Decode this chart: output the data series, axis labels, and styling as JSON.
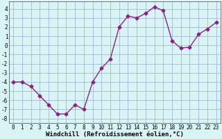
{
  "xlabel": "Windchill (Refroidissement éolien,°C)",
  "x": [
    0,
    1,
    2,
    3,
    4,
    5,
    6,
    7,
    8,
    9,
    10,
    11,
    12,
    13,
    14,
    15,
    16,
    17,
    18,
    19,
    20,
    21,
    22,
    23
  ],
  "y": [
    -4.0,
    -4.0,
    -4.5,
    -5.5,
    -6.5,
    -7.5,
    -7.5,
    -6.5,
    -7.0,
    -4.0,
    -2.5,
    -1.5,
    2.0,
    3.2,
    3.0,
    3.5,
    4.2,
    3.8,
    0.5,
    -0.3,
    -0.2,
    1.2,
    1.8,
    2.5
  ],
  "line_color": "#882288",
  "marker": "D",
  "marker_size": 2.5,
  "bg_color": "#d8f4f4",
  "grid_color": "#99aacc",
  "ylim": [
    -8.5,
    4.8
  ],
  "xlim": [
    -0.5,
    23.5
  ],
  "yticks": [
    -8,
    -7,
    -6,
    -5,
    -4,
    -3,
    -2,
    -1,
    0,
    1,
    2,
    3,
    4
  ],
  "xticks": [
    0,
    1,
    2,
    3,
    4,
    5,
    6,
    7,
    8,
    9,
    10,
    11,
    12,
    13,
    14,
    15,
    16,
    17,
    18,
    19,
    20,
    21,
    22,
    23
  ],
  "tick_label_fontsize": 5.5,
  "xlabel_fontsize": 6.5,
  "line_width": 1.0
}
